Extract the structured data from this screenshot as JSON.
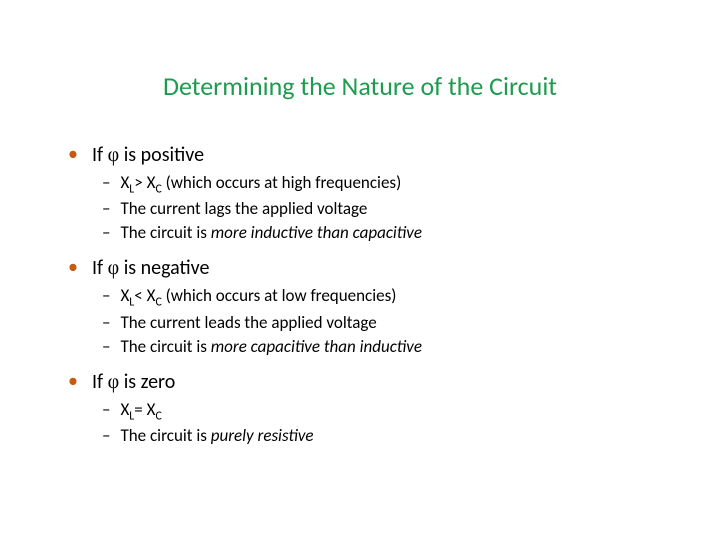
{
  "colors": {
    "title": "#1f9b4f",
    "bullet_dot": "#c55a11",
    "body_text": "#000000"
  },
  "title": "Determining the Nature of the Circuit",
  "sections": [
    {
      "heading_prefix": "If ",
      "heading_phi": "φ",
      "heading_suffix": " is positive",
      "items": [
        {
          "pre": "X",
          "sub1": "L",
          "mid": "> X",
          "sub2": "C",
          "post": " (which occurs at high frequencies)"
        },
        {
          "plain": "The current lags the applied voltage"
        },
        {
          "plain_pre": "The circuit is ",
          "em": "more inductive than capacitive"
        }
      ]
    },
    {
      "heading_prefix": "If ",
      "heading_phi": "φ",
      "heading_suffix": " is negative",
      "items": [
        {
          "pre": "X",
          "sub1": "L",
          "mid": "< X",
          "sub2": "C",
          "post": " (which occurs at low frequencies)"
        },
        {
          "plain": "The current leads the applied voltage"
        },
        {
          "plain_pre": "The circuit is ",
          "em": "more capacitive than inductive"
        }
      ]
    },
    {
      "heading_prefix": "If ",
      "heading_phi": "φ",
      "heading_suffix": " is zero",
      "items": [
        {
          "pre": "X",
          "sub1": "L",
          "mid": "= X",
          "sub2": "C",
          "post": ""
        },
        {
          "plain_pre": "The circuit is ",
          "em": "purely resistive"
        }
      ]
    }
  ]
}
